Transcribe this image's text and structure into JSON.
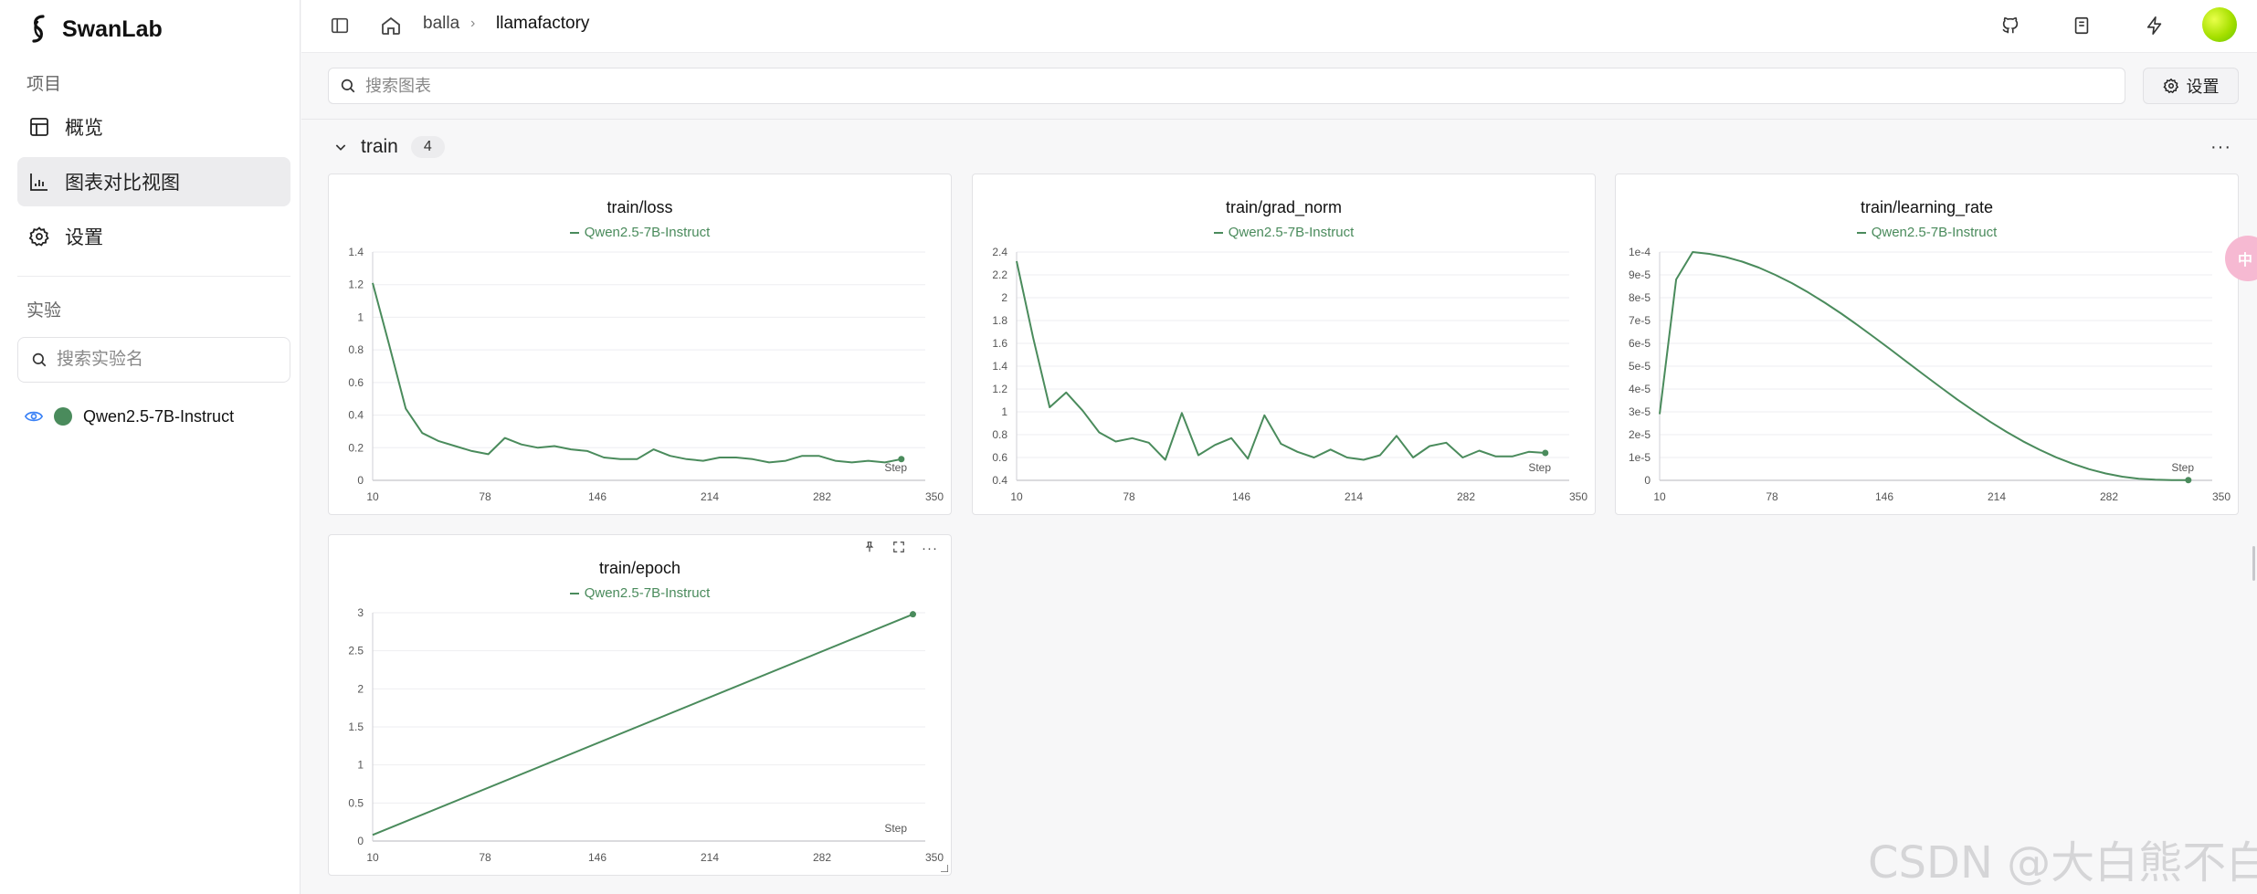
{
  "sidebar": {
    "brand": "SwanLab",
    "project_label": "项目",
    "nav": [
      {
        "label": "概览",
        "icon": "table-icon"
      },
      {
        "label": "图表对比视图",
        "icon": "chart-icon"
      },
      {
        "label": "设置",
        "icon": "gear-icon"
      }
    ],
    "experiment_label": "实验",
    "experiment_search_placeholder": "搜索实验名",
    "experiments": [
      {
        "name": "Qwen2.5-7B-Instruct",
        "color": "#4a8b5c"
      }
    ]
  },
  "header": {
    "breadcrumb": [
      "balla",
      "llamafactory"
    ]
  },
  "toolbar": {
    "search_placeholder": "搜索图表",
    "settings_label": "设置"
  },
  "group": {
    "name": "train",
    "count": "4"
  },
  "series_color": "#4a8b5c",
  "x_step_label": "Step",
  "chart_data": [
    {
      "type": "line",
      "title": "train/loss",
      "legend": [
        "Qwen2.5-7B-Instruct"
      ],
      "xlabel": "Step",
      "x_ticks": [
        "10",
        "78",
        "146",
        "214",
        "282",
        "350"
      ],
      "y_ticks": [
        "0",
        "0.2",
        "0.4",
        "0.6",
        "0.8",
        "1",
        "1.2",
        "1.4"
      ],
      "xlim": [
        10,
        350
      ],
      "ylim": [
        0,
        1.4
      ],
      "series": [
        {
          "name": "Qwen2.5-7B-Instruct",
          "x": [
            10,
            20,
            30,
            40,
            50,
            60,
            70,
            80,
            90,
            100,
            110,
            120,
            130,
            140,
            150,
            160,
            170,
            180,
            190,
            200,
            210,
            220,
            230,
            240,
            250,
            260,
            270,
            280,
            290,
            300,
            310,
            320,
            330
          ],
          "y": [
            1.21,
            0.83,
            0.44,
            0.29,
            0.24,
            0.21,
            0.18,
            0.16,
            0.26,
            0.22,
            0.2,
            0.21,
            0.19,
            0.18,
            0.14,
            0.13,
            0.13,
            0.19,
            0.15,
            0.13,
            0.12,
            0.14,
            0.14,
            0.13,
            0.11,
            0.12,
            0.15,
            0.15,
            0.12,
            0.11,
            0.12,
            0.11,
            0.13
          ]
        }
      ]
    },
    {
      "type": "line",
      "title": "train/grad_norm",
      "legend": [
        "Qwen2.5-7B-Instruct"
      ],
      "xlabel": "Step",
      "x_ticks": [
        "10",
        "78",
        "146",
        "214",
        "282",
        "350"
      ],
      "y_ticks": [
        "0.4",
        "0.6",
        "0.8",
        "1",
        "1.2",
        "1.4",
        "1.6",
        "1.8",
        "2",
        "2.2",
        "2.4"
      ],
      "xlim": [
        10,
        350
      ],
      "ylim": [
        0.4,
        2.4
      ],
      "series": [
        {
          "name": "Qwen2.5-7B-Instruct",
          "x": [
            10,
            20,
            30,
            40,
            50,
            60,
            70,
            80,
            90,
            100,
            110,
            120,
            130,
            140,
            150,
            160,
            170,
            180,
            190,
            200,
            210,
            220,
            230,
            240,
            250,
            260,
            270,
            280,
            290,
            300,
            310,
            320,
            330
          ],
          "y": [
            2.32,
            1.65,
            1.04,
            1.17,
            1.01,
            0.82,
            0.74,
            0.77,
            0.73,
            0.58,
            0.99,
            0.62,
            0.71,
            0.77,
            0.59,
            0.97,
            0.72,
            0.65,
            0.6,
            0.67,
            0.6,
            0.58,
            0.62,
            0.79,
            0.6,
            0.7,
            0.73,
            0.6,
            0.66,
            0.61,
            0.61,
            0.65,
            0.64
          ]
        }
      ]
    },
    {
      "type": "line",
      "title": "train/learning_rate",
      "legend": [
        "Qwen2.5-7B-Instruct"
      ],
      "xlabel": "Step",
      "x_ticks": [
        "10",
        "78",
        "146",
        "214",
        "282",
        "350"
      ],
      "y_ticks": [
        "0",
        "1e-5",
        "2e-5",
        "3e-5",
        "4e-5",
        "5e-5",
        "6e-5",
        "7e-5",
        "8e-5",
        "9e-5",
        "1e-4"
      ],
      "xlim": [
        10,
        350
      ],
      "ylim": [
        0,
        0.0001
      ],
      "series": [
        {
          "name": "Qwen2.5-7B-Instruct",
          "x": [
            10,
            20,
            30,
            40,
            50,
            60,
            70,
            80,
            90,
            100,
            110,
            120,
            130,
            140,
            150,
            160,
            170,
            180,
            190,
            200,
            210,
            220,
            230,
            240,
            250,
            260,
            270,
            280,
            290,
            300,
            310,
            320,
            330
          ],
          "y": [
            2.9e-05,
            8.8e-05,
            0.0001,
            9.92e-05,
            9.78e-05,
            9.58e-05,
            9.32e-05,
            9e-05,
            8.64e-05,
            8.23e-05,
            7.78e-05,
            7.3e-05,
            6.79e-05,
            6.26e-05,
            5.72e-05,
            5.17e-05,
            4.62e-05,
            4.08e-05,
            3.55e-05,
            3.05e-05,
            2.57e-05,
            2.12e-05,
            1.71e-05,
            1.34e-05,
            1.01e-05,
            7.3e-06,
            4.9e-06,
            3e-06,
            1.6e-06,
            7e-07,
            3e-07,
            1e-07,
            1e-07
          ]
        }
      ]
    },
    {
      "type": "line",
      "title": "train/epoch",
      "legend": [
        "Qwen2.5-7B-Instruct"
      ],
      "xlabel": "Step",
      "x_ticks": [
        "10",
        "78",
        "146",
        "214",
        "282",
        "350"
      ],
      "y_ticks": [
        "0",
        "0.5",
        "1",
        "1.5",
        "2",
        "2.5",
        "3"
      ],
      "xlim": [
        10,
        350
      ],
      "ylim": [
        0,
        3
      ],
      "series": [
        {
          "name": "Qwen2.5-7B-Instruct",
          "x": [
            10,
            337
          ],
          "y": [
            0.08,
            2.98
          ]
        }
      ]
    }
  ],
  "watermark": "CSDN @大白熊不白",
  "side_bubble": "中"
}
